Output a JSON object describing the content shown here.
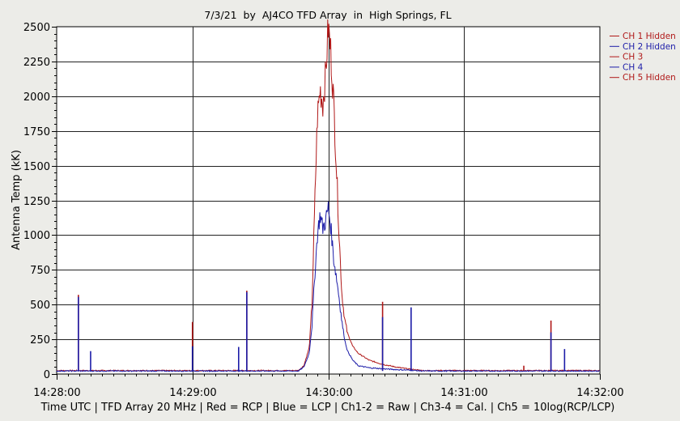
{
  "chart_data": {
    "type": "line",
    "title": "7/3/21  by  AJ4CO TFD Array  in  High Springs, FL",
    "ylabel": "Antenna Temp (kK)",
    "xlabel": "Time UTC | TFD Array 20 MHz | Red = RCP | Blue = LCP | Ch1-2 = Raw | Ch3-4 = Cal. | Ch5 = 10log(RCP/LCP)",
    "ylim": [
      0,
      2500
    ],
    "yticks": [
      0,
      250,
      500,
      750,
      1000,
      1250,
      1500,
      1750,
      2000,
      2250,
      2500
    ],
    "ytick_labels": [
      "0",
      "250",
      "500",
      "750",
      "1000",
      "1250",
      "1500",
      "1750",
      "2000",
      "2250",
      "2500"
    ],
    "xlim_minutes": [
      0,
      4
    ],
    "xticks_minutes": [
      0,
      1,
      2,
      3,
      4
    ],
    "xtick_labels": [
      "14:28:00",
      "14:29:00",
      "14:30:00",
      "14:31:00",
      "14:32:00"
    ],
    "grid": true,
    "legend_position": "top-right",
    "legend": [
      {
        "label": "CH 1 Hidden",
        "color": "#b01818"
      },
      {
        "label": "CH 2 Hidden",
        "color": "#1c1ca8"
      },
      {
        "label": "CH 3",
        "color": "#b01818"
      },
      {
        "label": "CH 4",
        "color": "#1c1ca8"
      },
      {
        "label": "CH 5 Hidden",
        "color": "#b01818"
      }
    ],
    "series": [
      {
        "name": "CH 3 (RCP)",
        "color": "#b01818",
        "baseline": 25,
        "x_minutes": [
          1.78,
          1.82,
          1.86,
          1.88,
          1.9,
          1.92,
          1.94,
          1.96,
          1.98,
          2.0,
          2.02,
          2.04,
          2.06,
          2.08,
          2.1,
          2.12,
          2.14,
          2.18,
          2.22,
          2.3,
          2.4,
          2.5,
          2.6,
          2.7
        ],
        "values": [
          25,
          60,
          190,
          500,
          1200,
          1850,
          2050,
          1950,
          2150,
          2500,
          2300,
          1950,
          1500,
          1000,
          580,
          400,
          300,
          200,
          150,
          100,
          70,
          50,
          35,
          25
        ],
        "spikes": [
          {
            "x_minutes": 0.16,
            "value": 570
          },
          {
            "x_minutes": 1.0,
            "value": 375
          },
          {
            "x_minutes": 1.4,
            "value": 600
          },
          {
            "x_minutes": 2.4,
            "value": 520
          },
          {
            "x_minutes": 3.64,
            "value": 385
          },
          {
            "x_minutes": 3.44,
            "value": 60
          }
        ]
      },
      {
        "name": "CH 4 (LCP)",
        "color": "#1c1ca8",
        "baseline": 22,
        "x_minutes": [
          1.78,
          1.82,
          1.86,
          1.88,
          1.9,
          1.92,
          1.94,
          1.96,
          1.98,
          2.0,
          2.02,
          2.04,
          2.06,
          2.08,
          2.1,
          2.12,
          2.14,
          2.18,
          2.22,
          2.3,
          2.4,
          2.5,
          2.6,
          2.7
        ],
        "values": [
          22,
          50,
          150,
          350,
          700,
          1000,
          1150,
          1050,
          1100,
          1200,
          1050,
          830,
          700,
          550,
          380,
          250,
          170,
          100,
          60,
          45,
          38,
          32,
          28,
          22
        ],
        "spikes": [
          {
            "x_minutes": 0.16,
            "value": 555
          },
          {
            "x_minutes": 0.25,
            "value": 165
          },
          {
            "x_minutes": 1.0,
            "value": 200
          },
          {
            "x_minutes": 1.34,
            "value": 195
          },
          {
            "x_minutes": 1.4,
            "value": 590
          },
          {
            "x_minutes": 2.4,
            "value": 410
          },
          {
            "x_minutes": 2.61,
            "value": 480
          },
          {
            "x_minutes": 3.64,
            "value": 300
          },
          {
            "x_minutes": 3.74,
            "value": 180
          }
        ]
      }
    ]
  }
}
